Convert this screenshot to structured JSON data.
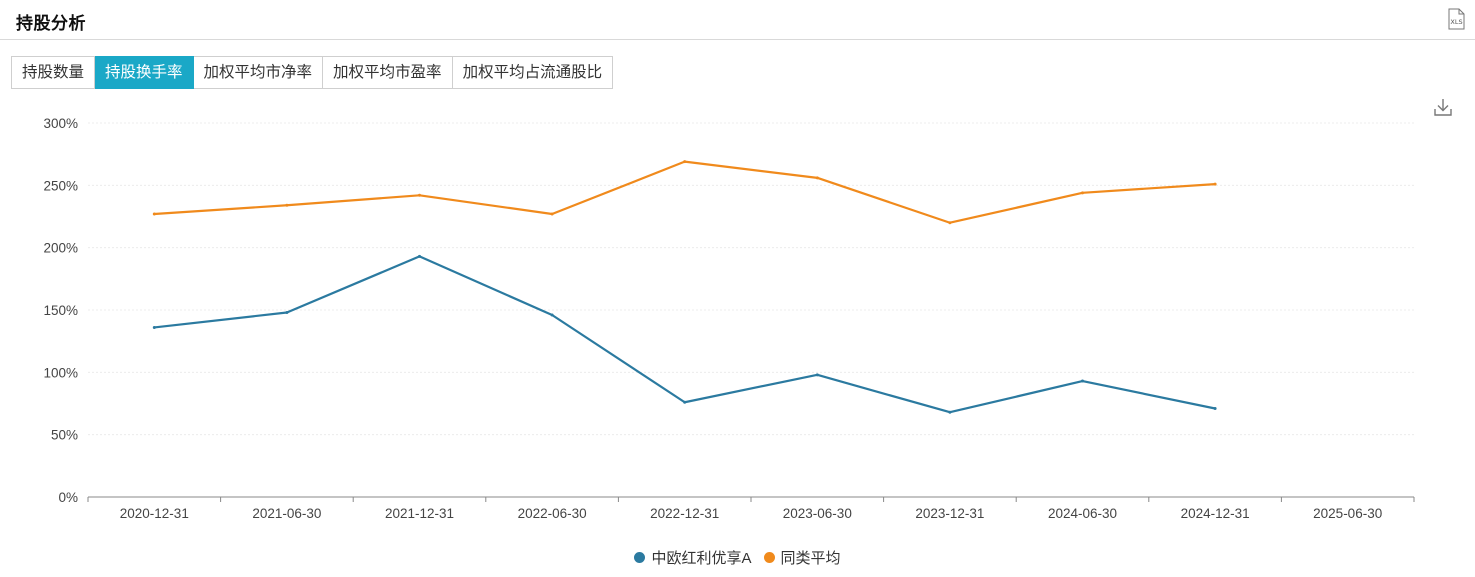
{
  "header": {
    "title": "持股分析",
    "export_icon": "xls-export-icon",
    "export_icon_text": "XLS"
  },
  "tabs": [
    {
      "label": "持股数量",
      "active": false
    },
    {
      "label": "持股换手率",
      "active": true
    },
    {
      "label": "加权平均市净率",
      "active": false
    },
    {
      "label": "加权平均市盈率",
      "active": false
    },
    {
      "label": "加权平均占流通股比",
      "active": false
    }
  ],
  "toolbox": {
    "download_icon": "download-icon"
  },
  "chart_data": {
    "type": "line",
    "categories": [
      "2020-12-31",
      "2021-06-30",
      "2021-12-31",
      "2022-06-30",
      "2022-12-31",
      "2023-06-30",
      "2023-12-31",
      "2024-06-30",
      "2024-12-31",
      "2025-06-30"
    ],
    "series": [
      {
        "name": "中欧红利优享A",
        "color": "#2b7aa0",
        "values": [
          136,
          148,
          193,
          146,
          76,
          98,
          68,
          93,
          71,
          null
        ]
      },
      {
        "name": "同类平均",
        "color": "#f08a1c",
        "values": [
          227,
          234,
          242,
          227,
          269,
          256,
          220,
          244,
          251,
          null
        ]
      }
    ],
    "ylim": [
      0,
      300
    ],
    "yticks": [
      0,
      50,
      100,
      150,
      200,
      250,
      300
    ],
    "ytick_labels": [
      "0%",
      "50%",
      "100%",
      "150%",
      "200%",
      "250%",
      "300%"
    ],
    "grid": true,
    "legend_position": "bottom-center"
  }
}
